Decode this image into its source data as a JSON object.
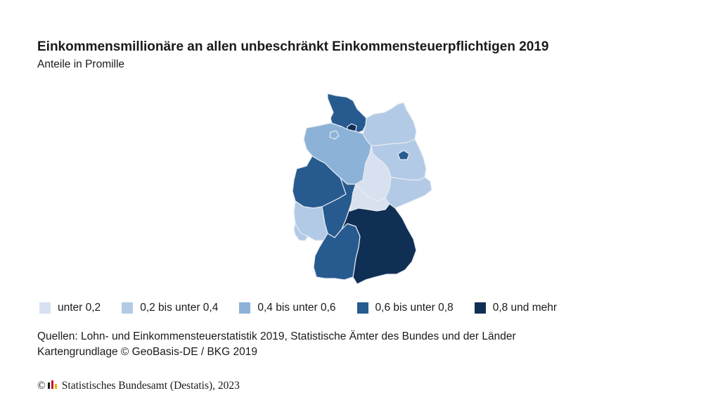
{
  "title": "Einkommensmillionäre an allen unbeschränkt Einkommensteuerpflichtigen 2019",
  "subtitle": "Anteile in Promille",
  "colors": {
    "class_0": "#d7e1ef",
    "class_1": "#b2cae5",
    "class_2": "#8cb2d7",
    "class_3": "#275b8f",
    "class_4": "#102f54",
    "border": "#e6ebf2"
  },
  "legend": [
    {
      "label": "unter 0,2",
      "color": "#d7e1ef"
    },
    {
      "label": "0,2 bis unter 0,4",
      "color": "#b2cae5"
    },
    {
      "label": "0,4 bis unter 0,6",
      "color": "#8cb2d7"
    },
    {
      "label": "0,6 bis unter 0,8",
      "color": "#275b8f"
    },
    {
      "label": "0,8 und mehr",
      "color": "#102f54"
    }
  ],
  "regions": [
    {
      "id": "schleswig-holstein",
      "class": 3
    },
    {
      "id": "hamburg",
      "class": 4
    },
    {
      "id": "mecklenburg-vorpommern",
      "class": 1
    },
    {
      "id": "niedersachsen",
      "class": 2
    },
    {
      "id": "bremen",
      "class": 2
    },
    {
      "id": "brandenburg",
      "class": 1
    },
    {
      "id": "berlin",
      "class": 3
    },
    {
      "id": "sachsen-anhalt",
      "class": 0
    },
    {
      "id": "nordrhein-westfalen",
      "class": 3
    },
    {
      "id": "hessen",
      "class": 3
    },
    {
      "id": "thueringen",
      "class": 0
    },
    {
      "id": "sachsen",
      "class": 1
    },
    {
      "id": "rheinland-pfalz",
      "class": 1
    },
    {
      "id": "saarland",
      "class": 1
    },
    {
      "id": "baden-wuerttemberg",
      "class": 3
    },
    {
      "id": "bayern",
      "class": 4
    }
  ],
  "sources": {
    "line1": "Quellen: Lohn- und Einkommensteuerstatistik 2019, Statistische Ämter des Bundes und der Länder",
    "line2": "Kartengrundlage © GeoBasis-DE / BKG 2019"
  },
  "footer": {
    "copyright_symbol": "©",
    "publisher": "Statistisches Bundesamt (Destatis), 2023"
  }
}
